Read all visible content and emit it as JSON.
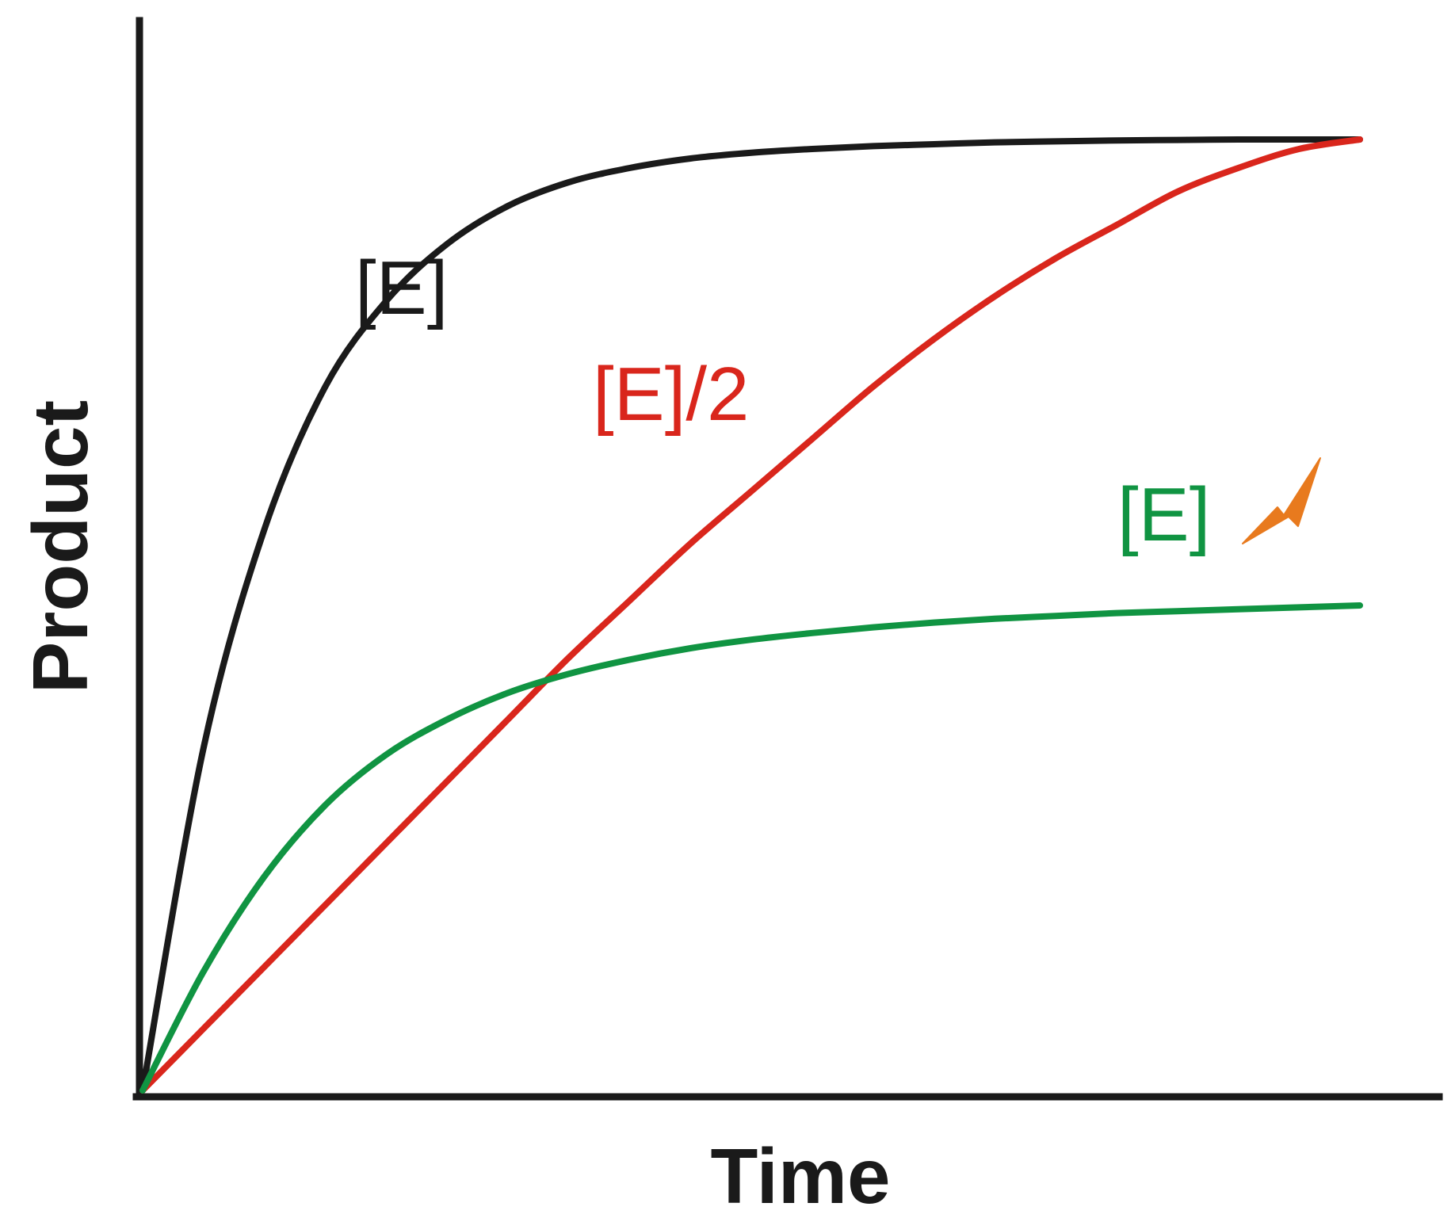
{
  "chart_data": {
    "type": "line",
    "title": "",
    "xlabel": "Time",
    "ylabel": "Product",
    "xlim": [
      0,
      1
    ],
    "ylim": [
      0,
      1
    ],
    "grid": false,
    "legend": "inline labels next to curves",
    "series": [
      {
        "name": "[E]",
        "color": "#1a1a1a",
        "x": [
          0,
          0.05,
          0.1,
          0.15,
          0.2,
          0.25,
          0.3,
          0.35,
          0.4,
          0.45,
          0.5,
          0.55,
          0.6,
          0.65,
          0.7,
          0.75,
          0.8,
          0.85,
          0.9,
          0.95,
          1.0
        ],
        "y": [
          0,
          0.36,
          0.59,
          0.74,
          0.83,
          0.89,
          0.93,
          0.955,
          0.97,
          0.98,
          0.986,
          0.99,
          0.993,
          0.995,
          0.997,
          0.998,
          0.999,
          0.9995,
          1.0,
          1.0,
          1.0
        ]
      },
      {
        "name": "[E]/2",
        "color": "#d9261c",
        "x": [
          0,
          0.05,
          0.1,
          0.15,
          0.2,
          0.25,
          0.3,
          0.35,
          0.4,
          0.45,
          0.5,
          0.55,
          0.6,
          0.65,
          0.7,
          0.75,
          0.8,
          0.85,
          0.9,
          0.95,
          1.0
        ],
        "y": [
          0,
          0.065,
          0.13,
          0.195,
          0.26,
          0.325,
          0.39,
          0.455,
          0.515,
          0.575,
          0.63,
          0.685,
          0.74,
          0.79,
          0.835,
          0.875,
          0.91,
          0.945,
          0.97,
          0.99,
          1.0
        ]
      },
      {
        "name": "[E]",
        "color": "#109442",
        "marker_icon": "lightning-bolt-icon",
        "marker_color": "#e87a1e",
        "x": [
          0,
          0.05,
          0.1,
          0.15,
          0.2,
          0.25,
          0.3,
          0.35,
          0.4,
          0.45,
          0.5,
          0.55,
          0.6,
          0.65,
          0.7,
          0.75,
          0.8,
          0.85,
          0.9,
          0.95,
          1.0
        ],
        "y": [
          0,
          0.125,
          0.225,
          0.3,
          0.353,
          0.39,
          0.418,
          0.438,
          0.453,
          0.465,
          0.474,
          0.481,
          0.487,
          0.492,
          0.496,
          0.499,
          0.502,
          0.504,
          0.506,
          0.508,
          0.51
        ]
      }
    ]
  }
}
